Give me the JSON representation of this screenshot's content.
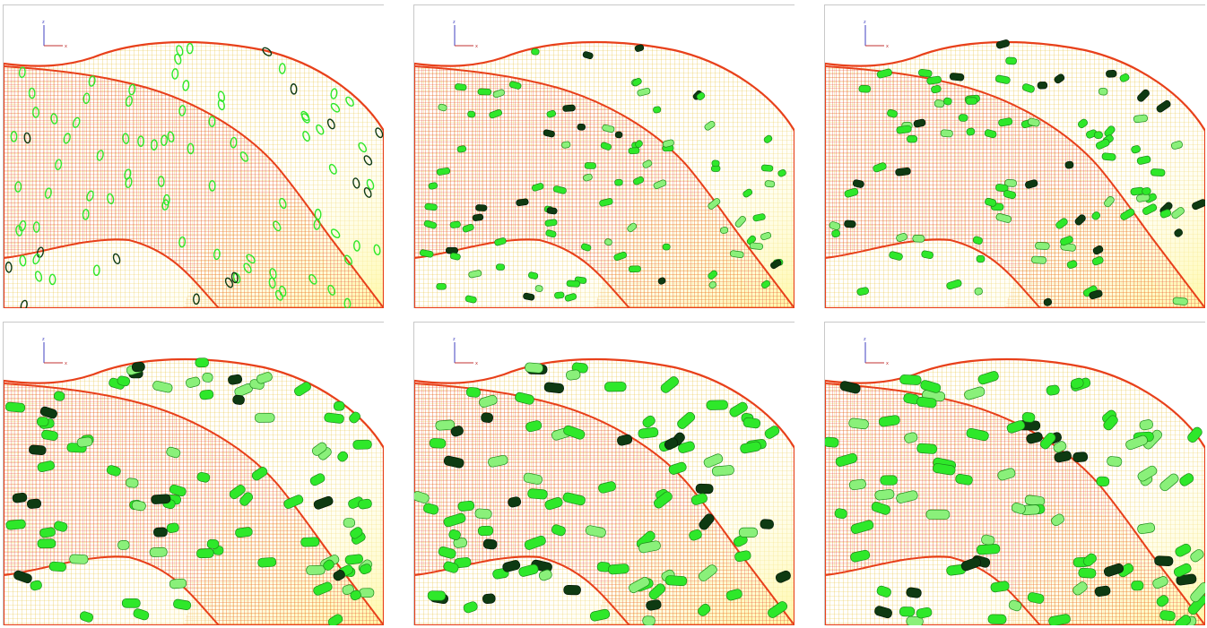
{
  "figure": {
    "panels": [
      {
        "id": "p1",
        "stage": 1,
        "fiber_style": "rings",
        "fiber_scale": 0.35
      },
      {
        "id": "p2",
        "stage": 2,
        "fiber_style": "cylinder",
        "fiber_scale": 0.75
      },
      {
        "id": "p3",
        "stage": 3,
        "fiber_style": "cylinder",
        "fiber_scale": 0.85
      },
      {
        "id": "p4",
        "stage": 4,
        "fiber_style": "cylinder",
        "fiber_scale": 1.1
      },
      {
        "id": "p5",
        "stage": 5,
        "fiber_style": "cylinder",
        "fiber_scale": 1.25
      },
      {
        "id": "p6",
        "stage": 6,
        "fiber_style": "cylinder",
        "fiber_scale": 1.3
      }
    ],
    "axis_triad": {
      "vertical_label": "z",
      "horizontal_label": "x"
    },
    "colors": {
      "mesh_red": "#e8401a",
      "mesh_orange": "#f0901c",
      "mesh_yellow": "#f4e23a",
      "fiber_bright": "#2ee82a",
      "fiber_light": "#8af07a",
      "fiber_dark": "#0e3a12",
      "triad_blue": "#4040c0",
      "triad_red": "#c03030"
    }
  }
}
